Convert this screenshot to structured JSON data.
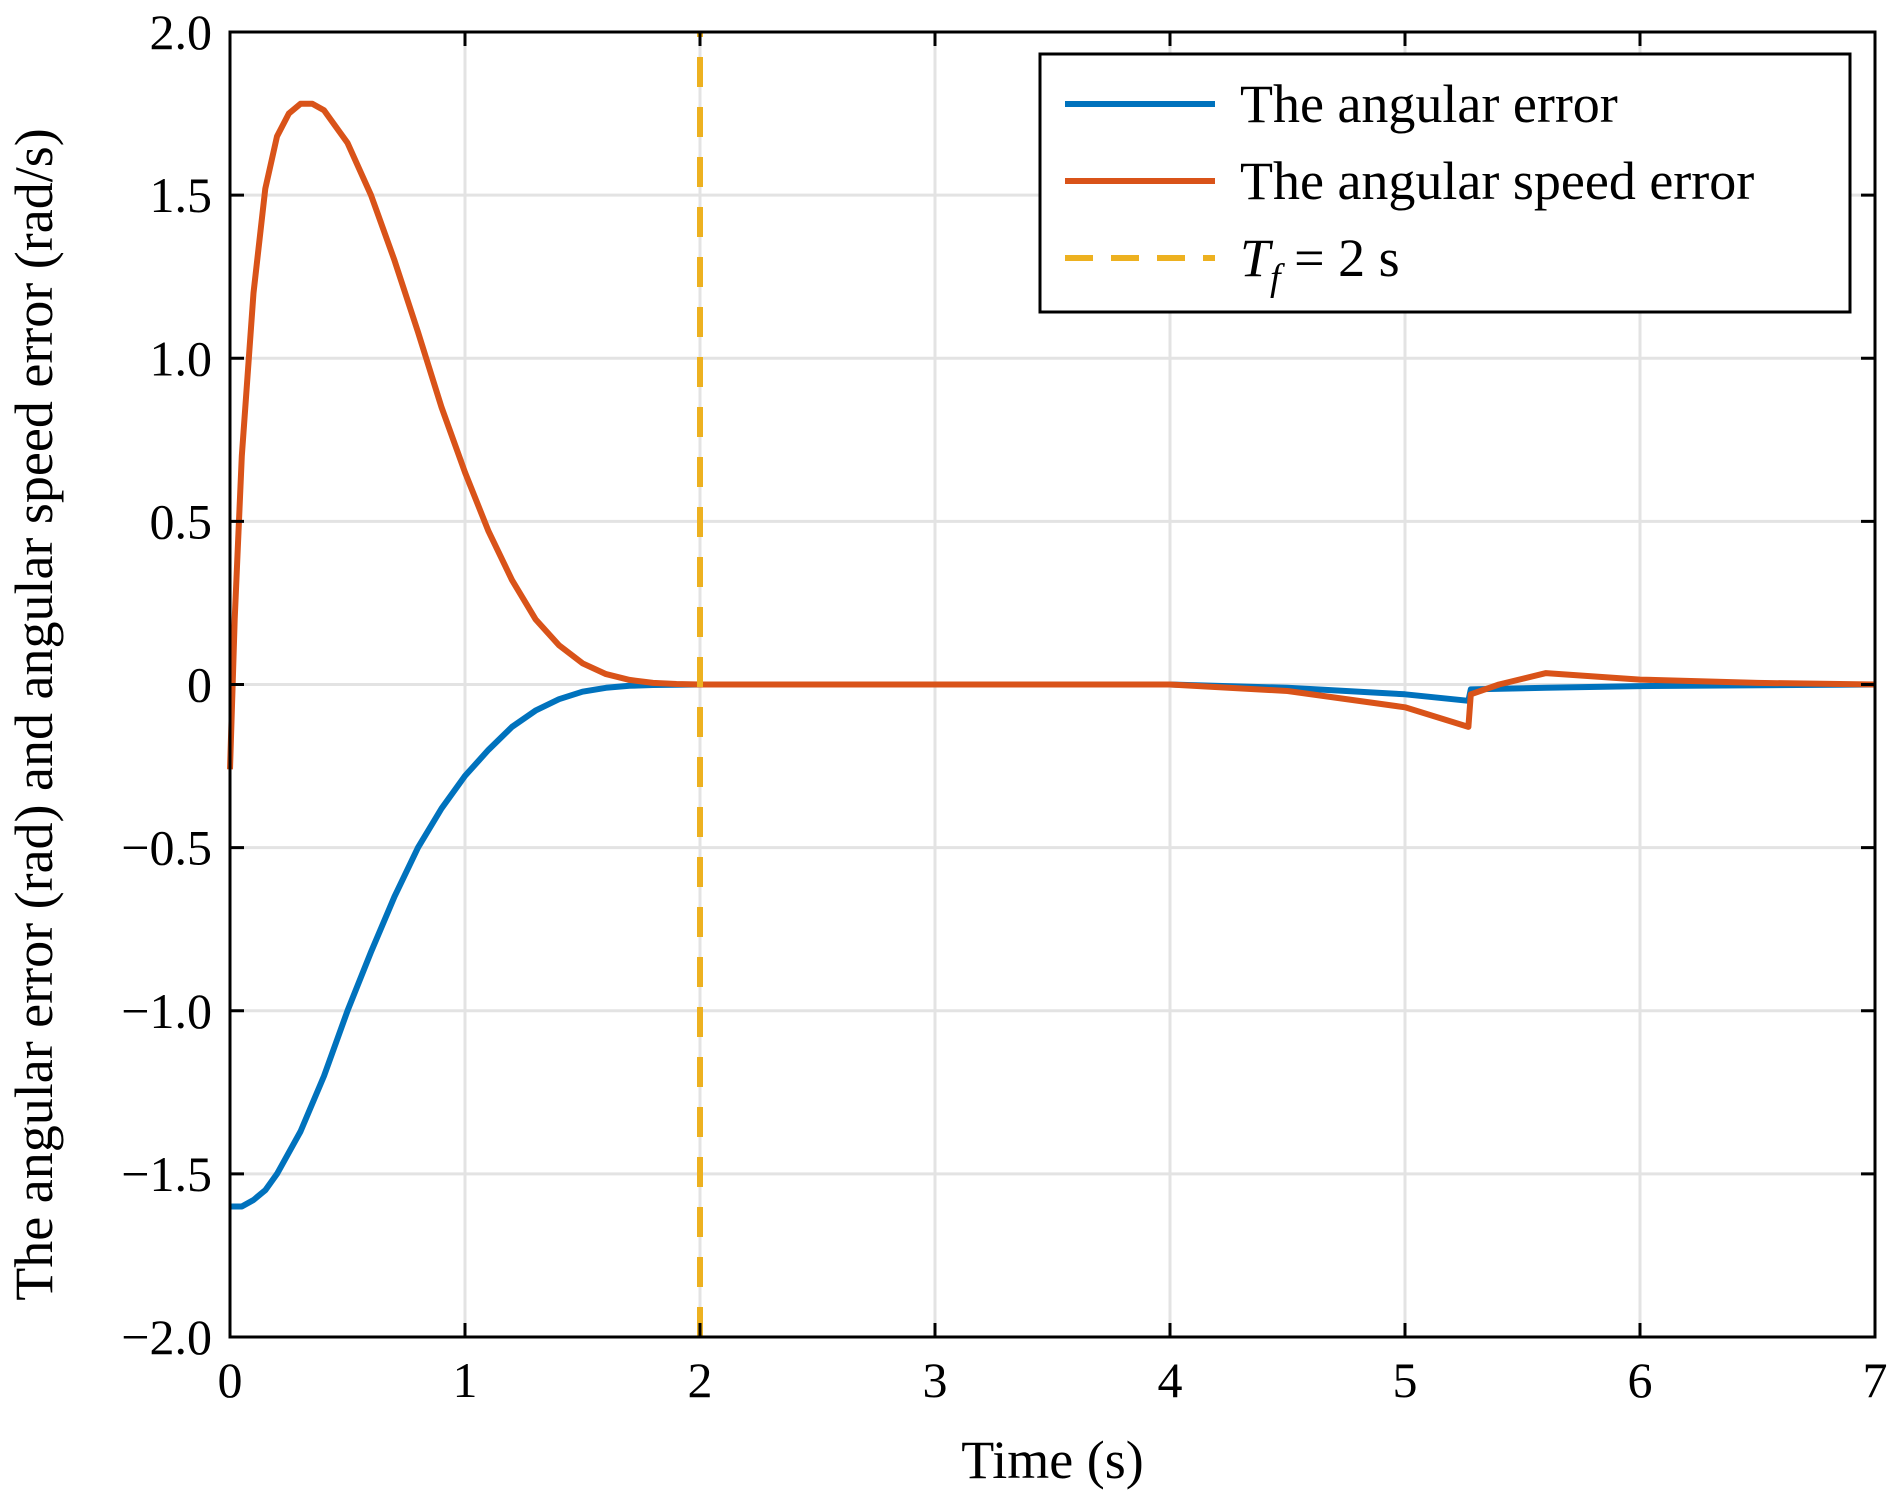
{
  "chart_data": {
    "type": "line",
    "xlabel": "Time (s)",
    "ylabel": "The angular error (rad) and angular speed error (rad/s)",
    "xlim": [
      0,
      7
    ],
    "ylim": [
      -2.0,
      2.0
    ],
    "x_ticks": [
      "0",
      "1",
      "2",
      "3",
      "4",
      "5",
      "6",
      "7"
    ],
    "y_ticks": [
      "−2.0",
      "−1.5",
      "−1.0",
      "−0.5",
      "0",
      "0.5",
      "1.0",
      "1.5",
      "2.0"
    ],
    "grid": true,
    "legend_position": "top-right",
    "series": [
      {
        "name": "The angular error",
        "color": "#0072BD",
        "style": "solid",
        "x": [
          0,
          0.05,
          0.1,
          0.15,
          0.2,
          0.3,
          0.4,
          0.5,
          0.6,
          0.7,
          0.8,
          0.9,
          1.0,
          1.1,
          1.2,
          1.3,
          1.4,
          1.5,
          1.6,
          1.7,
          1.8,
          1.9,
          2.0,
          2.5,
          3.0,
          3.5,
          4.0,
          4.5,
          5.0,
          5.27,
          5.28,
          5.6,
          6.0,
          7.0
        ],
        "y": [
          -1.6,
          -1.6,
          -1.58,
          -1.55,
          -1.5,
          -1.37,
          -1.2,
          -1.0,
          -0.82,
          -0.65,
          -0.5,
          -0.38,
          -0.28,
          -0.2,
          -0.13,
          -0.08,
          -0.045,
          -0.022,
          -0.01,
          -0.004,
          -0.0015,
          -0.0005,
          0,
          0,
          0,
          0,
          0,
          -0.01,
          -0.03,
          -0.05,
          -0.015,
          -0.01,
          -0.005,
          0
        ]
      },
      {
        "name": "The angular speed error",
        "color": "#D95319",
        "style": "solid",
        "x": [
          0,
          0.02,
          0.05,
          0.1,
          0.15,
          0.2,
          0.25,
          0.3,
          0.35,
          0.4,
          0.5,
          0.6,
          0.7,
          0.8,
          0.9,
          1.0,
          1.1,
          1.2,
          1.3,
          1.4,
          1.5,
          1.6,
          1.7,
          1.8,
          1.9,
          2.0,
          2.5,
          3.0,
          3.5,
          4.0,
          4.5,
          5.0,
          5.27,
          5.28,
          5.4,
          5.6,
          6.0,
          6.5,
          7.0
        ],
        "y": [
          -0.26,
          0.2,
          0.7,
          1.2,
          1.52,
          1.68,
          1.75,
          1.78,
          1.78,
          1.76,
          1.66,
          1.5,
          1.3,
          1.08,
          0.85,
          0.65,
          0.47,
          0.32,
          0.2,
          0.12,
          0.065,
          0.032,
          0.014,
          0.005,
          0.0015,
          0,
          0,
          0,
          0,
          0,
          -0.02,
          -0.07,
          -0.13,
          -0.03,
          0.0,
          0.035,
          0.015,
          0.005,
          0
        ]
      },
      {
        "name": "T_f = 2 s",
        "color": "#EDB120",
        "style": "dashed",
        "x": [
          2,
          2
        ],
        "y": [
          -2.0,
          2.0
        ]
      }
    ],
    "legend": {
      "entries": [
        {
          "label": "The angular error",
          "color": "#0072BD",
          "style": "solid"
        },
        {
          "label": "The angular speed error",
          "color": "#D95319",
          "style": "solid"
        },
        {
          "label_main": "T",
          "label_sub": "f",
          "label_rest": " = 2 s",
          "color": "#EDB120",
          "style": "dashed"
        }
      ]
    }
  }
}
